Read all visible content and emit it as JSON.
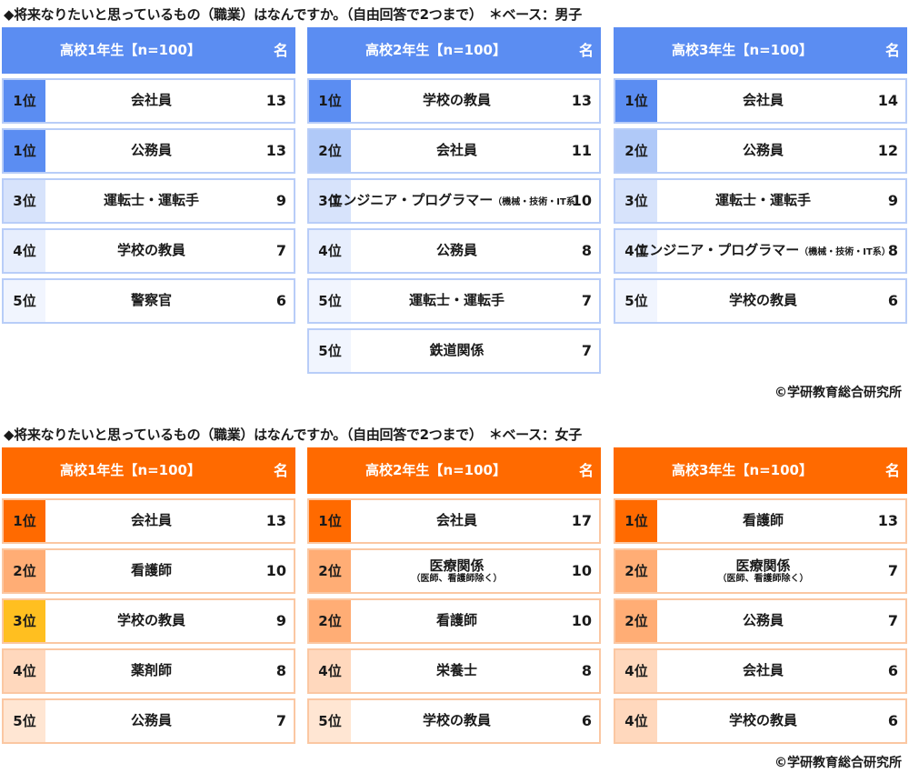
{
  "chart_data": [
    {
      "type": "table",
      "title": "◆将来なりたいと思っているもの（職業）はなんですか。（自由回答で2つまで）　＊ベース：男子",
      "credit": "©学研教育総合研究所",
      "columns": [
        {
          "header": "高校1年生【n=100】",
          "unit": "名",
          "rows": [
            {
              "rank": "1位",
              "job": "会社員",
              "job_note": "",
              "count": 13
            },
            {
              "rank": "1位",
              "job": "公務員",
              "job_note": "",
              "count": 13
            },
            {
              "rank": "3位",
              "job": "運転士・運転手",
              "job_note": "",
              "count": 9
            },
            {
              "rank": "4位",
              "job": "学校の教員",
              "job_note": "",
              "count": 7
            },
            {
              "rank": "5位",
              "job": "警察官",
              "job_note": "",
              "count": 6
            }
          ]
        },
        {
          "header": "高校2年生【n=100】",
          "unit": "名",
          "rows": [
            {
              "rank": "1位",
              "job": "学校の教員",
              "job_note": "",
              "count": 13
            },
            {
              "rank": "2位",
              "job": "会社員",
              "job_note": "",
              "count": 11
            },
            {
              "rank": "3位",
              "job": "エンジニア・プログラマー",
              "job_note": "（機械・技術・IT系）",
              "count": 10
            },
            {
              "rank": "4位",
              "job": "公務員",
              "job_note": "",
              "count": 8
            },
            {
              "rank": "5位",
              "job": "運転士・運転手",
              "job_note": "",
              "count": 7
            },
            {
              "rank": "5位",
              "job": "鉄道関係",
              "job_note": "",
              "count": 7
            }
          ]
        },
        {
          "header": "高校3年生【n=100】",
          "unit": "名",
          "rows": [
            {
              "rank": "1位",
              "job": "会社員",
              "job_note": "",
              "count": 14
            },
            {
              "rank": "2位",
              "job": "公務員",
              "job_note": "",
              "count": 12
            },
            {
              "rank": "3位",
              "job": "運転士・運転手",
              "job_note": "",
              "count": 9
            },
            {
              "rank": "4位",
              "job": "エンジニア・プログラマー",
              "job_note": "（機械・技術・IT系）",
              "count": 8
            },
            {
              "rank": "5位",
              "job": "学校の教員",
              "job_note": "",
              "count": 6
            }
          ]
        }
      ]
    },
    {
      "type": "table",
      "title": "◆将来なりたいと思っているもの（職業）はなんですか。（自由回答で2つまで）　＊ベース：女子",
      "credit": "©学研教育総合研究所",
      "columns": [
        {
          "header": "高校1年生【n=100】",
          "unit": "名",
          "rows": [
            {
              "rank": "1位",
              "job": "会社員",
              "job_note": "",
              "count": 13
            },
            {
              "rank": "2位",
              "job": "看護師",
              "job_note": "",
              "count": 10
            },
            {
              "rank": "3位",
              "job": "学校の教員",
              "job_note": "",
              "count": 9
            },
            {
              "rank": "4位",
              "job": "薬剤師",
              "job_note": "",
              "count": 8
            },
            {
              "rank": "5位",
              "job": "公務員",
              "job_note": "",
              "count": 7
            }
          ]
        },
        {
          "header": "高校2年生【n=100】",
          "unit": "名",
          "rows": [
            {
              "rank": "1位",
              "job": "会社員",
              "job_note": "",
              "count": 17
            },
            {
              "rank": "2位",
              "job": "医療関係",
              "job_note": "（医師、看護師除く）",
              "count": 10
            },
            {
              "rank": "2位",
              "job": "看護師",
              "job_note": "",
              "count": 10
            },
            {
              "rank": "4位",
              "job": "栄養士",
              "job_note": "",
              "count": 8
            },
            {
              "rank": "5位",
              "job": "学校の教員",
              "job_note": "",
              "count": 6
            }
          ]
        },
        {
          "header": "高校3年生【n=100】",
          "unit": "名",
          "rows": [
            {
              "rank": "1位",
              "job": "看護師",
              "job_note": "",
              "count": 13
            },
            {
              "rank": "2位",
              "job": "医療関係",
              "job_note": "（医師、看護師除く）",
              "count": 7
            },
            {
              "rank": "2位",
              "job": "公務員",
              "job_note": "",
              "count": 7
            },
            {
              "rank": "4位",
              "job": "会社員",
              "job_note": "",
              "count": 6
            },
            {
              "rank": "4位",
              "job": "学校の教員",
              "job_note": "",
              "count": 6
            }
          ]
        }
      ]
    }
  ]
}
